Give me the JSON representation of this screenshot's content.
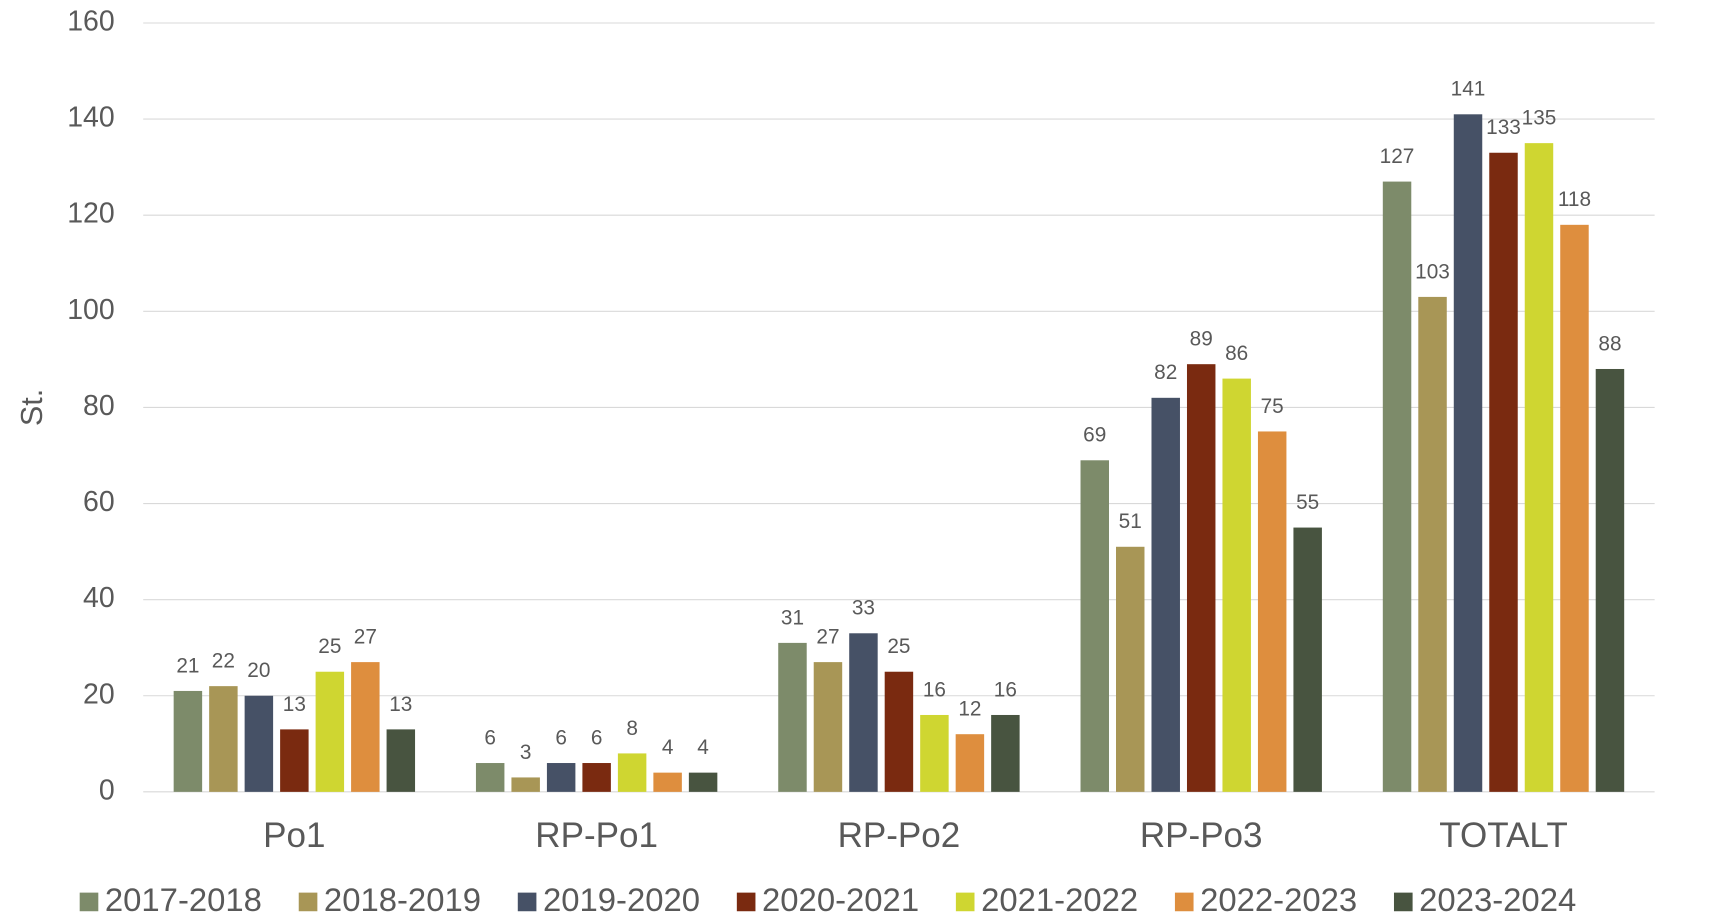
{
  "chart_data": {
    "type": "bar",
    "ylabel": "St.",
    "categories": [
      "Po1",
      "RP-Po1",
      "RP-Po2",
      "RP-Po3",
      "TOTALT"
    ],
    "series": [
      {
        "name": "2017-2018",
        "color": "#7d8b6a",
        "values": [
          21,
          6,
          31,
          69,
          127
        ]
      },
      {
        "name": "2018-2019",
        "color": "#a89656",
        "values": [
          22,
          3,
          27,
          51,
          103
        ]
      },
      {
        "name": "2019-2020",
        "color": "#465166",
        "values": [
          20,
          6,
          33,
          82,
          141
        ]
      },
      {
        "name": "2020-2021",
        "color": "#7a2a10",
        "values": [
          13,
          6,
          25,
          89,
          133
        ]
      },
      {
        "name": "2021-2022",
        "color": "#cfd631",
        "values": [
          25,
          8,
          16,
          86,
          135
        ]
      },
      {
        "name": "2022-2023",
        "color": "#de8e3e",
        "values": [
          27,
          4,
          12,
          75,
          118
        ]
      },
      {
        "name": "2023-2024",
        "color": "#485440",
        "values": [
          13,
          4,
          16,
          55,
          88
        ]
      }
    ],
    "ylim": [
      0,
      160
    ],
    "yticks": [
      0,
      20,
      40,
      60,
      80,
      100,
      120,
      140,
      160
    ],
    "grid": true,
    "legend": "bottom"
  }
}
